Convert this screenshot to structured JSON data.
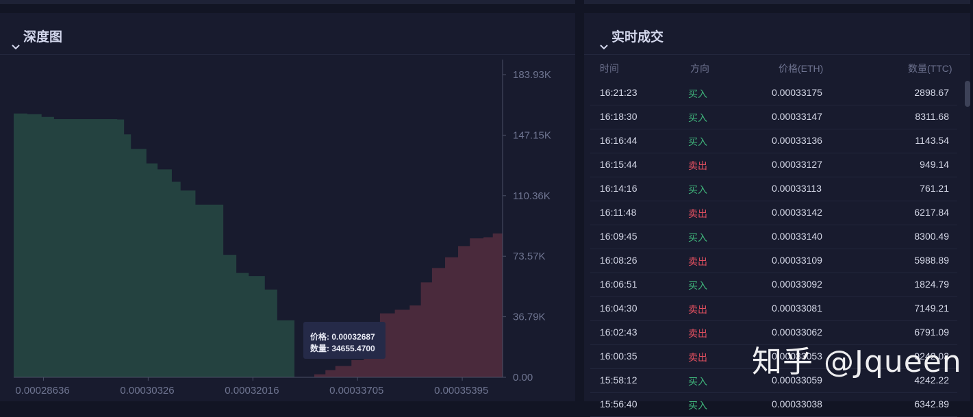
{
  "depth_panel": {
    "title": "深度图"
  },
  "trades_panel": {
    "title": "实时成交",
    "headers": {
      "time": "时间",
      "side": "方向",
      "price": "价格(ETH)",
      "qty": "数量(TTC)"
    },
    "rows": [
      {
        "time": "16:21:23",
        "side": "买入",
        "price": "0.00033175",
        "qty": "2898.67"
      },
      {
        "time": "16:18:30",
        "side": "买入",
        "price": "0.00033147",
        "qty": "8311.68"
      },
      {
        "time": "16:16:44",
        "side": "买入",
        "price": "0.00033136",
        "qty": "1143.54"
      },
      {
        "time": "16:15:44",
        "side": "卖出",
        "price": "0.00033127",
        "qty": "949.14"
      },
      {
        "time": "16:14:16",
        "side": "买入",
        "price": "0.00033113",
        "qty": "761.21"
      },
      {
        "time": "16:11:48",
        "side": "卖出",
        "price": "0.00033142",
        "qty": "6217.84"
      },
      {
        "time": "16:09:45",
        "side": "买入",
        "price": "0.00033140",
        "qty": "8300.49"
      },
      {
        "time": "16:08:26",
        "side": "卖出",
        "price": "0.00033109",
        "qty": "5988.89"
      },
      {
        "time": "16:06:51",
        "side": "买入",
        "price": "0.00033092",
        "qty": "1824.79"
      },
      {
        "time": "16:04:30",
        "side": "卖出",
        "price": "0.00033081",
        "qty": "7149.21"
      },
      {
        "time": "16:02:43",
        "side": "卖出",
        "price": "0.00033062",
        "qty": "6791.09"
      },
      {
        "time": "16:00:35",
        "side": "卖出",
        "price": "0.00033053",
        "qty": "9242.03"
      },
      {
        "time": "15:58:12",
        "side": "买入",
        "price": "0.00033059",
        "qty": "4242.22"
      },
      {
        "time": "15:56:40",
        "side": "买入",
        "price": "0.00033038",
        "qty": "6342.89"
      }
    ]
  },
  "tooltip": {
    "price_label": "价格: 0.00032687",
    "qty_label": "数量: 34655.4700"
  },
  "watermark": "知乎 @Jqueen",
  "colors": {
    "bid": "#244240",
    "ask": "#4a2a3c",
    "buy": "#3fb37a",
    "sell": "#e04f5f"
  },
  "chart_data": {
    "type": "area",
    "title": "深度图",
    "x_ticks": [
      "0.00028636",
      "0.00030326",
      "0.00032016",
      "0.00033705",
      "0.00035395"
    ],
    "x_tick_values": [
      0.00028636,
      0.00030326,
      0.00032016,
      0.00033705,
      0.00035395
    ],
    "y_ticks": [
      "183.93K",
      "147.15K",
      "110.36K",
      "73.57K",
      "36.79K",
      "0.00"
    ],
    "y_tick_values": [
      183930,
      147150,
      110360,
      73570,
      36790,
      0
    ],
    "xlim": [
      0.00028156,
      0.00036046
    ],
    "ylim": [
      0,
      183930
    ],
    "series": [
      {
        "side": "bid",
        "points": [
          [
            0.00028156,
            160320
          ],
          [
            0.00028376,
            159890
          ],
          [
            0.00028606,
            158220
          ],
          [
            0.00028807,
            156880
          ],
          [
            0.00029827,
            156670
          ],
          [
            0.00029937,
            147610
          ],
          [
            0.00030048,
            138710
          ],
          [
            0.00030298,
            129970
          ],
          [
            0.00030478,
            126370
          ],
          [
            0.00030708,
            118830
          ],
          [
            0.00030849,
            113520
          ],
          [
            0.00031089,
            104900
          ],
          [
            0.00031539,
            74420
          ],
          [
            0.00031749,
            63400
          ],
          [
            0.00031949,
            61530
          ],
          [
            0.00032209,
            53300
          ],
          [
            0.00032409,
            34660
          ],
          [
            0.00032687,
            0
          ]
        ]
      },
      {
        "side": "ask",
        "points": [
          [
            0.00033007,
            1830
          ],
          [
            0.00033187,
            4380
          ],
          [
            0.00033347,
            6850
          ],
          [
            0.00033607,
            10440
          ],
          [
            0.00033807,
            24720
          ],
          [
            0.00034067,
            38880
          ],
          [
            0.00034307,
            41040
          ],
          [
            0.00034547,
            43660
          ],
          [
            0.00034727,
            57670
          ],
          [
            0.00034907,
            66430
          ],
          [
            0.00035118,
            72940
          ],
          [
            0.00035328,
            79720
          ],
          [
            0.00035518,
            84440
          ],
          [
            0.00035738,
            85100
          ],
          [
            0.00035888,
            87370
          ],
          [
            0.00036046,
            87370
          ]
        ]
      }
    ]
  }
}
